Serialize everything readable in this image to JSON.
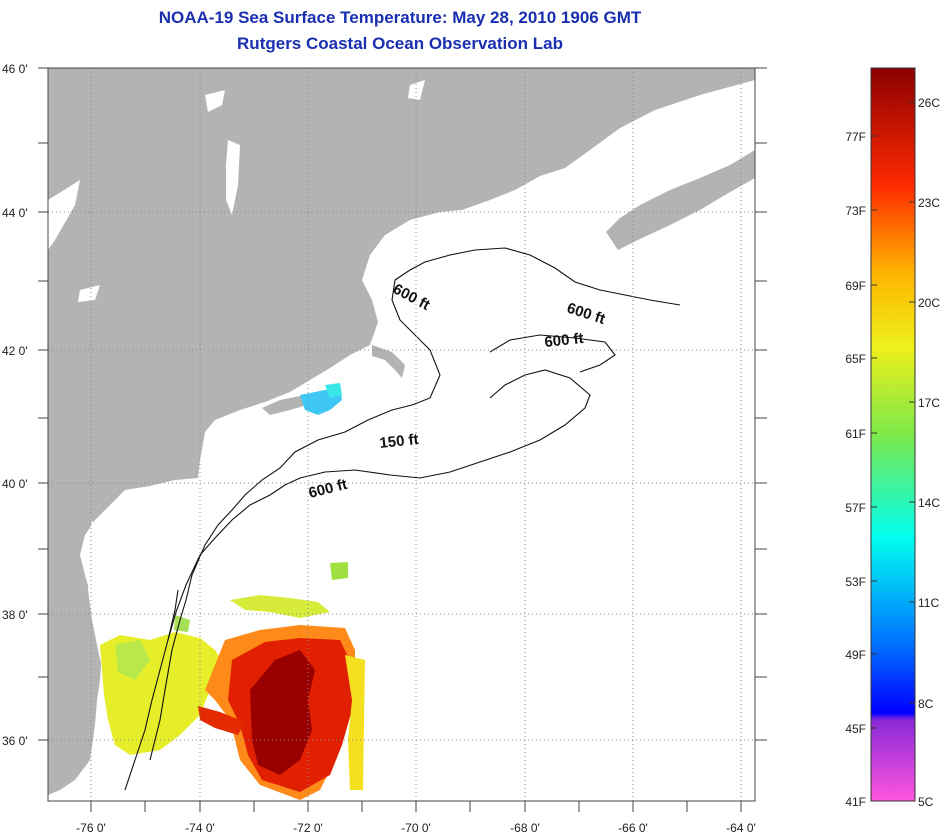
{
  "header": {
    "title": "NOAA-19 Sea Surface Temperature:  May 28, 2010 1906 GMT",
    "subtitle": "Rutgers Coastal Ocean Observation Lab"
  },
  "map": {
    "lat_labels": [
      "46 0'",
      "44 0'",
      "42 0'",
      "40 0'",
      "38 0'",
      "36 0'"
    ],
    "lon_labels": [
      "-76 0'",
      "-74 0'",
      "-72 0'",
      "-70 0'",
      "-68 0'",
      "-66 0'",
      "-64 0'"
    ],
    "contour_labels": [
      "600 ft",
      "600 ft",
      "600 ft",
      "150 ft",
      "600 ft"
    ],
    "colors": {
      "land": "#b3b3b3",
      "ocean": "#ffffff",
      "grid": "#888888"
    }
  },
  "colorbar": {
    "fahrenheit": [
      "77F",
      "73F",
      "69F",
      "65F",
      "61F",
      "57F",
      "53F",
      "49F",
      "45F",
      "41F"
    ],
    "celsius": [
      "26C",
      "23C",
      "20C",
      "17C",
      "14C",
      "11C",
      "8C",
      "5C"
    ]
  }
}
